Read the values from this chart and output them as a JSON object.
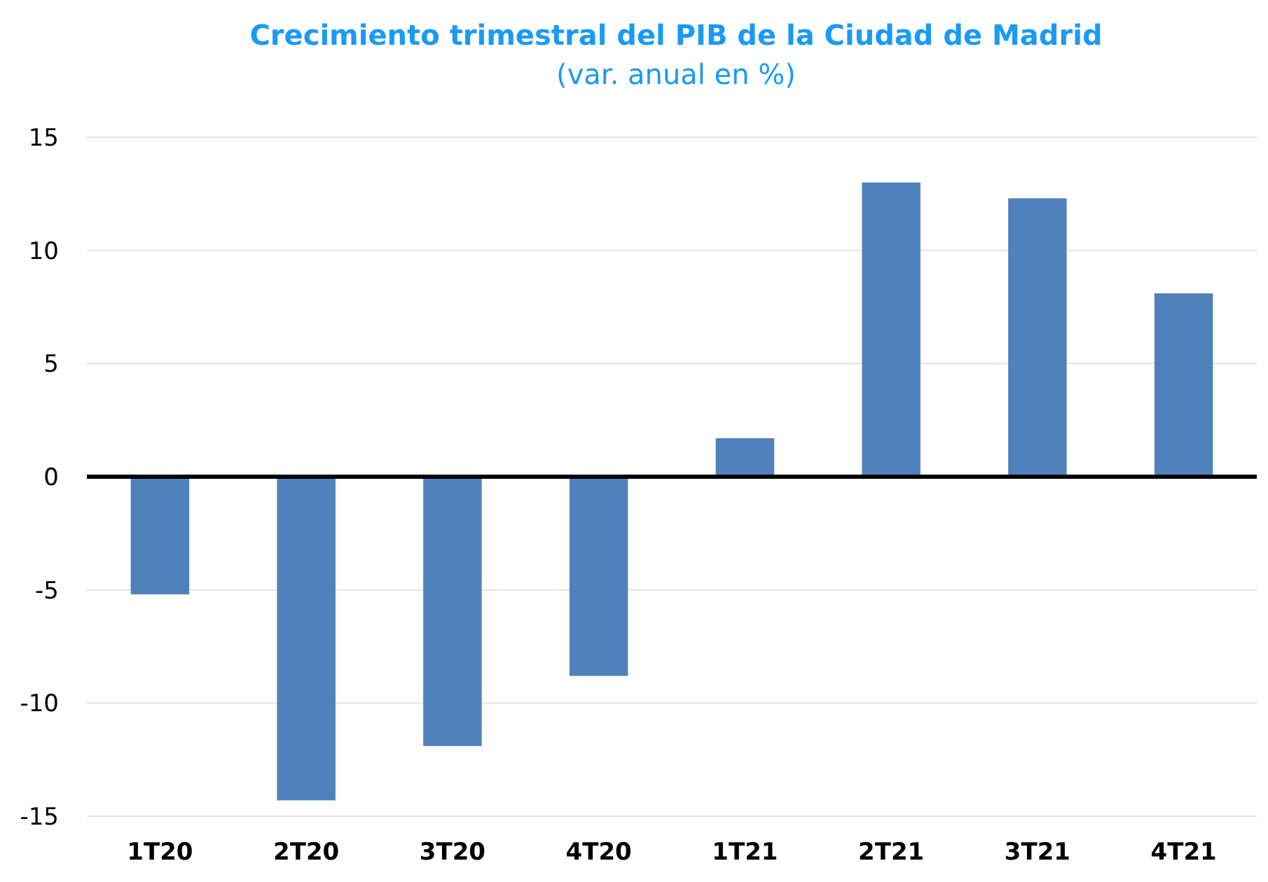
{
  "chart_data": {
    "type": "bar",
    "title": "Crecimiento trimestral del PIB de la Ciudad de Madrid",
    "subtitle": "(var. anual en %)",
    "categories": [
      "1T20",
      "2T20",
      "3T20",
      "4T20",
      "1T21",
      "2T21",
      "3T21",
      "4T21"
    ],
    "values": [
      -5.2,
      -14.3,
      -11.9,
      -8.8,
      1.7,
      13.0,
      12.3,
      8.1
    ],
    "color": "#4f81bd",
    "ylim": [
      -15,
      15
    ],
    "yticks": [
      -15,
      -10,
      -5,
      0,
      5,
      10,
      15
    ],
    "grid": "y"
  }
}
